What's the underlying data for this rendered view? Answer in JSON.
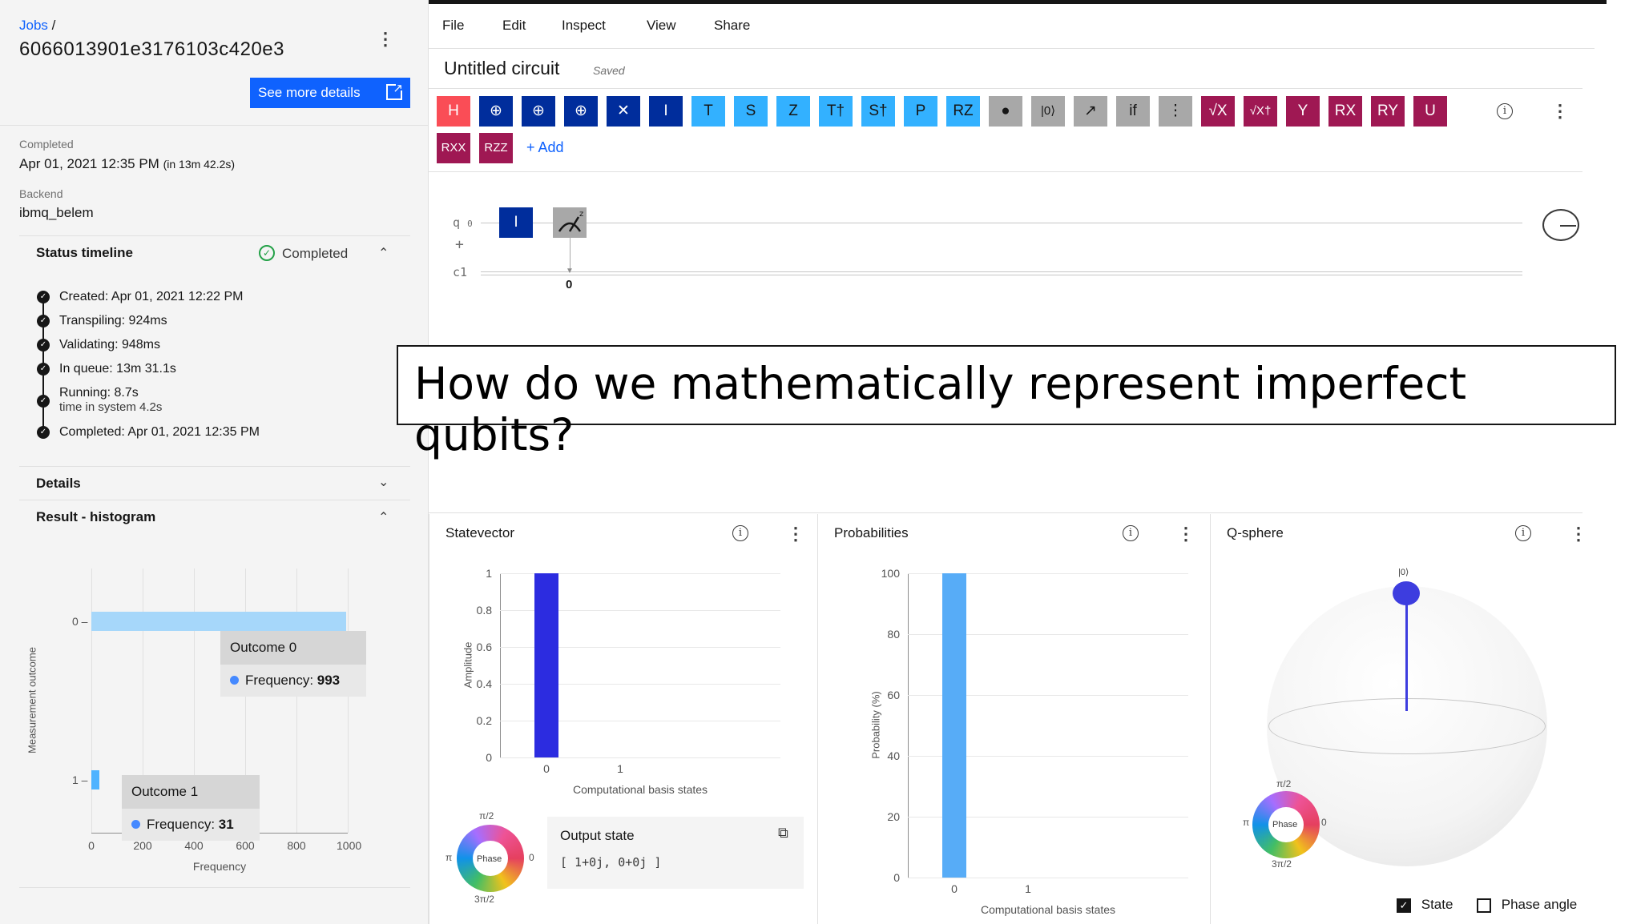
{
  "left_panel": {
    "breadcrumb": "Jobs",
    "breadcrumb_sep": "/",
    "job_id": "6066013901e3176103c420e3",
    "see_more": "See more details",
    "completed_label": "Completed",
    "completed_value": "Apr 01, 2021 12:35 PM",
    "completed_duration": "(in 13m 42.2s)",
    "backend_label": "Backend",
    "backend_value": "ibmq_belem",
    "status_timeline": "Status timeline",
    "status_badge": "Completed",
    "timeline": [
      "Created: Apr 01, 2021 12:22 PM",
      "Transpiling: 924ms",
      "Validating: 948ms",
      "In queue: 13m 31.1s",
      "Running: 8.7s",
      "Completed: Apr 01, 2021 12:35 PM"
    ],
    "running_sub": "time in system 4.2s",
    "details": "Details",
    "result_histogram": "Result - histogram"
  },
  "histogram": {
    "ylabel": "Measurement outcome",
    "xlabel": "Frequency",
    "y_ticks": [
      "0",
      "1"
    ],
    "x_ticks": [
      "0",
      "200",
      "400",
      "600",
      "800",
      "1000"
    ],
    "tooltip0_title": "Outcome 0",
    "tooltip0_label": "Frequency: ",
    "tooltip0_value": "993",
    "tooltip1_title": "Outcome 1",
    "tooltip1_label": "Frequency: ",
    "tooltip1_value": "31"
  },
  "menu": [
    "File",
    "Edit",
    "Inspect",
    "View",
    "Share"
  ],
  "circuit": {
    "title": "Untitled circuit",
    "saved": "Saved",
    "add": "+ Add",
    "qubit_label": "q",
    "qubit_index": "0",
    "plus": "+",
    "classical_label": "c1",
    "measure_index": "0",
    "gate_I": "I"
  },
  "gates_row1": [
    {
      "label": "H",
      "color": "#fa4d56"
    },
    {
      "label": "⊕",
      "color": "#002d9c"
    },
    {
      "label": "⊕",
      "color": "#002d9c"
    },
    {
      "label": "⊕",
      "color": "#002d9c"
    },
    {
      "label": "✕",
      "color": "#002d9c"
    },
    {
      "label": "I",
      "color": "#002d9c"
    },
    {
      "label": "T",
      "color": "#33b1ff"
    },
    {
      "label": "S",
      "color": "#33b1ff"
    },
    {
      "label": "Z",
      "color": "#33b1ff"
    },
    {
      "label": "T†",
      "color": "#33b1ff"
    },
    {
      "label": "S†",
      "color": "#33b1ff"
    },
    {
      "label": "P",
      "color": "#33b1ff"
    },
    {
      "label": "RZ",
      "color": "#33b1ff"
    },
    {
      "label": "●",
      "color": "#a8a8a8"
    },
    {
      "label": "|0⟩",
      "color": "#a8a8a8"
    },
    {
      "label": "↗",
      "color": "#a8a8a8"
    },
    {
      "label": "if",
      "color": "#a8a8a8"
    },
    {
      "label": "⋮",
      "color": "#a8a8a8"
    },
    {
      "label": "√X",
      "color": "#9f1853"
    },
    {
      "label": "√X†",
      "color": "#9f1853"
    },
    {
      "label": "Y",
      "color": "#9f1853"
    },
    {
      "label": "RX",
      "color": "#9f1853"
    },
    {
      "label": "RY",
      "color": "#9f1853"
    },
    {
      "label": "U",
      "color": "#9f1853"
    }
  ],
  "gates_row2": [
    {
      "label": "RXX",
      "color": "#9f1853"
    },
    {
      "label": "RZZ",
      "color": "#9f1853"
    }
  ],
  "overlay_question": "How do we mathematically represent imperfect qubits?",
  "statevector": {
    "title": "Statevector",
    "ylabel": "Amplitude",
    "xlabel": "Computational basis states",
    "y_ticks": [
      "1",
      "0.8",
      "0.6",
      "0.4",
      "0.2",
      "0"
    ],
    "x_ticks": [
      "0",
      "1"
    ],
    "output_state_label": "Output state",
    "output_state_value": "[ 1+0j, 0+0j ]",
    "phase_top": "π/2",
    "phase_left": "π",
    "phase_right": "0",
    "phase_bottom": "3π/2",
    "phase_center": "Phase"
  },
  "probabilities": {
    "title": "Probabilities",
    "ylabel": "Probability (%)",
    "xlabel": "Computational basis states",
    "y_ticks": [
      "100",
      "80",
      "60",
      "40",
      "20",
      "0"
    ],
    "x_ticks": [
      "0",
      "1"
    ]
  },
  "qsphere": {
    "title": "Q-sphere",
    "state_label": "|0⟩",
    "phase_top": "π/2",
    "phase_left": "π",
    "phase_right": "0",
    "phase_bottom": "3π/2",
    "phase_center": "Phase",
    "cb_state": "State",
    "cb_phase": "Phase angle"
  },
  "chart_data": [
    {
      "type": "bar",
      "orientation": "horizontal",
      "categories": [
        "0",
        "1"
      ],
      "values": [
        993,
        31
      ],
      "xlabel": "Frequency",
      "ylabel": "Measurement outcome",
      "xlim": [
        0,
        1000
      ]
    },
    {
      "type": "bar",
      "categories": [
        "0",
        "1"
      ],
      "values": [
        1,
        0
      ],
      "xlabel": "Computational basis states",
      "ylabel": "Amplitude",
      "ylim": [
        0,
        1
      ]
    },
    {
      "type": "bar",
      "categories": [
        "0",
        "1"
      ],
      "values": [
        100,
        0
      ],
      "xlabel": "Computational basis states",
      "ylabel": "Probability (%)",
      "ylim": [
        0,
        100
      ]
    }
  ]
}
